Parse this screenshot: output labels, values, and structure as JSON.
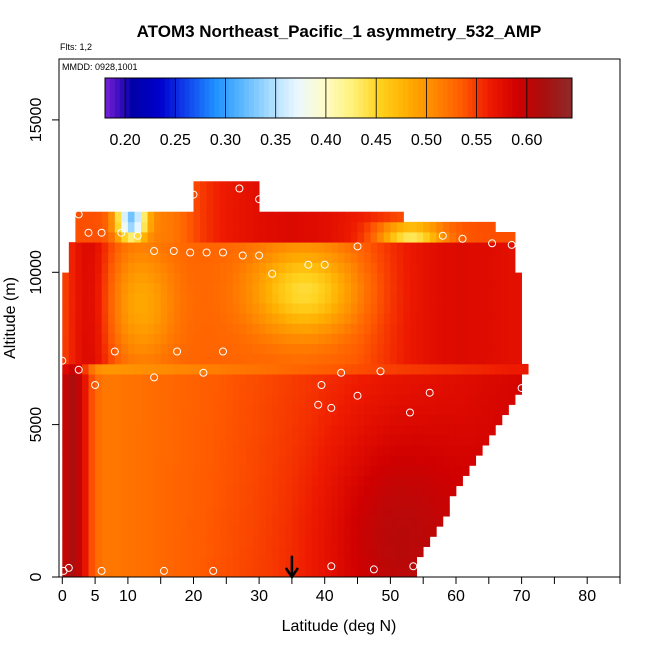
{
  "chart_data": {
    "type": "heatmap",
    "title": "ATOM3 Northeast_Pacific_1 asymmetry_532_AMP",
    "subtitle_flights": "Flts: 1,2",
    "subtitle_dates": "MMDD: 0928,1001",
    "xlabel": "Latitude (deg N)",
    "ylabel": "Altitude (m)",
    "xlim": [
      -0.5,
      85
    ],
    "ylim": [
      0,
      17000
    ],
    "x_ticks": [
      0,
      5,
      10,
      20,
      30,
      40,
      50,
      60,
      70,
      80
    ],
    "x_minor_ticks": [
      15,
      25,
      35,
      45,
      55,
      65,
      75,
      85
    ],
    "y_ticks": [
      0,
      5000,
      10000,
      15000
    ],
    "colorbar": {
      "min": 0.18,
      "max": 0.645,
      "ticks": [
        0.2,
        0.25,
        0.3,
        0.35,
        0.4,
        0.45,
        0.5,
        0.55,
        0.6
      ],
      "tick_labels": [
        "0.20",
        "0.25",
        "0.30",
        "0.35",
        "0.40",
        "0.45",
        "0.50",
        "0.55",
        "0.60"
      ],
      "colors": [
        "#7a1fd6",
        "#0000a8",
        "#0000cc",
        "#1144ee",
        "#1e90ff",
        "#5cb8ff",
        "#a8dcff",
        "#eaf8ff",
        "#fffbc8",
        "#fff27a",
        "#ffd21e",
        "#ffae00",
        "#ff8800",
        "#ff5a00",
        "#ee1a00",
        "#d00000",
        "#a80f0f",
        "#8f2a2a"
      ]
    },
    "field_layers": [
      {
        "lat": [
          0.5,
          54
        ],
        "alt": [
          0,
          7000
        ],
        "value": 0.54,
        "note": "lower troposphere, darker toward north"
      },
      {
        "lat": [
          0.5,
          4
        ],
        "alt": [
          0,
          7000
        ],
        "value": 0.62
      },
      {
        "lat": [
          44,
          54
        ],
        "alt": [
          0,
          4000
        ],
        "value": 0.63
      },
      {
        "lat": [
          0.5,
          71
        ],
        "alt": [
          6500,
          11000
        ],
        "value": 0.52
      },
      {
        "lat": [
          28,
          46
        ],
        "alt": [
          6800,
          10000
        ],
        "value": 0.45,
        "note": "pale maximum near 35-40N, 9000-10000 m"
      },
      {
        "lat": [
          7,
          18
        ],
        "alt": [
          7500,
          10800
        ],
        "value": 0.47
      },
      {
        "lat": [
          46,
          68
        ],
        "alt": [
          6000,
          11200
        ],
        "value": 0.57
      },
      {
        "lat": [
          1,
          69
        ],
        "alt": [
          10800,
          12000
        ],
        "value": 0.53
      },
      {
        "lat": [
          9,
          13
        ],
        "alt": [
          11000,
          12500
        ],
        "value": 0.32,
        "note": "blue low near 10N, 11500 m"
      },
      {
        "lat": [
          48,
          58
        ],
        "alt": [
          11000,
          11400
        ],
        "value": 0.4
      },
      {
        "lat": [
          20,
          27
        ],
        "alt": [
          12000,
          13000
        ],
        "value": 0.55
      }
    ],
    "profile_points": [
      {
        "lat": 0.2,
        "alt": 200
      },
      {
        "lat": 1.0,
        "alt": 300
      },
      {
        "lat": 6.0,
        "alt": 200
      },
      {
        "lat": 15.5,
        "alt": 200
      },
      {
        "lat": 23.0,
        "alt": 200
      },
      {
        "lat": 41.0,
        "alt": 350
      },
      {
        "lat": 47.5,
        "alt": 250
      },
      {
        "lat": 53.5,
        "alt": 350
      },
      {
        "lat": 0.0,
        "alt": 7100
      },
      {
        "lat": 2.5,
        "alt": 6800
      },
      {
        "lat": 5.0,
        "alt": 6300
      },
      {
        "lat": 8.0,
        "alt": 7400
      },
      {
        "lat": 14.0,
        "alt": 6550
      },
      {
        "lat": 17.5,
        "alt": 7400
      },
      {
        "lat": 21.5,
        "alt": 6700
      },
      {
        "lat": 24.5,
        "alt": 7400
      },
      {
        "lat": 39.5,
        "alt": 6300
      },
      {
        "lat": 42.5,
        "alt": 6700
      },
      {
        "lat": 45.0,
        "alt": 5950
      },
      {
        "lat": 48.5,
        "alt": 6750
      },
      {
        "lat": 53.0,
        "alt": 5400
      },
      {
        "lat": 56.0,
        "alt": 6050
      },
      {
        "lat": 70.0,
        "alt": 6200
      },
      {
        "lat": 39.0,
        "alt": 5650
      },
      {
        "lat": 41.0,
        "alt": 5550
      },
      {
        "lat": 14.0,
        "alt": 10700
      },
      {
        "lat": 17.0,
        "alt": 10700
      },
      {
        "lat": 19.5,
        "alt": 10650
      },
      {
        "lat": 22.0,
        "alt": 10650
      },
      {
        "lat": 24.5,
        "alt": 10650
      },
      {
        "lat": 27.5,
        "alt": 10550
      },
      {
        "lat": 30.0,
        "alt": 10550
      },
      {
        "lat": 32.0,
        "alt": 9950
      },
      {
        "lat": 37.5,
        "alt": 10250
      },
      {
        "lat": 40.0,
        "alt": 10250
      },
      {
        "lat": 45.0,
        "alt": 10850
      },
      {
        "lat": 2.5,
        "alt": 11900
      },
      {
        "lat": 4.0,
        "alt": 11300
      },
      {
        "lat": 6.0,
        "alt": 11300
      },
      {
        "lat": 9.0,
        "alt": 11300
      },
      {
        "lat": 11.0,
        "alt": 12400
      },
      {
        "lat": 11.5,
        "alt": 11200
      },
      {
        "lat": 20.0,
        "alt": 12550
      },
      {
        "lat": 27.0,
        "alt": 12750
      },
      {
        "lat": 30.0,
        "alt": 12400
      },
      {
        "lat": 58.0,
        "alt": 11200
      },
      {
        "lat": 61.0,
        "alt": 11100
      },
      {
        "lat": 65.5,
        "alt": 10950
      },
      {
        "lat": 68.5,
        "alt": 10900
      }
    ],
    "arrow": {
      "lat": 35,
      "alt_from": 700,
      "alt_to": 0
    }
  }
}
